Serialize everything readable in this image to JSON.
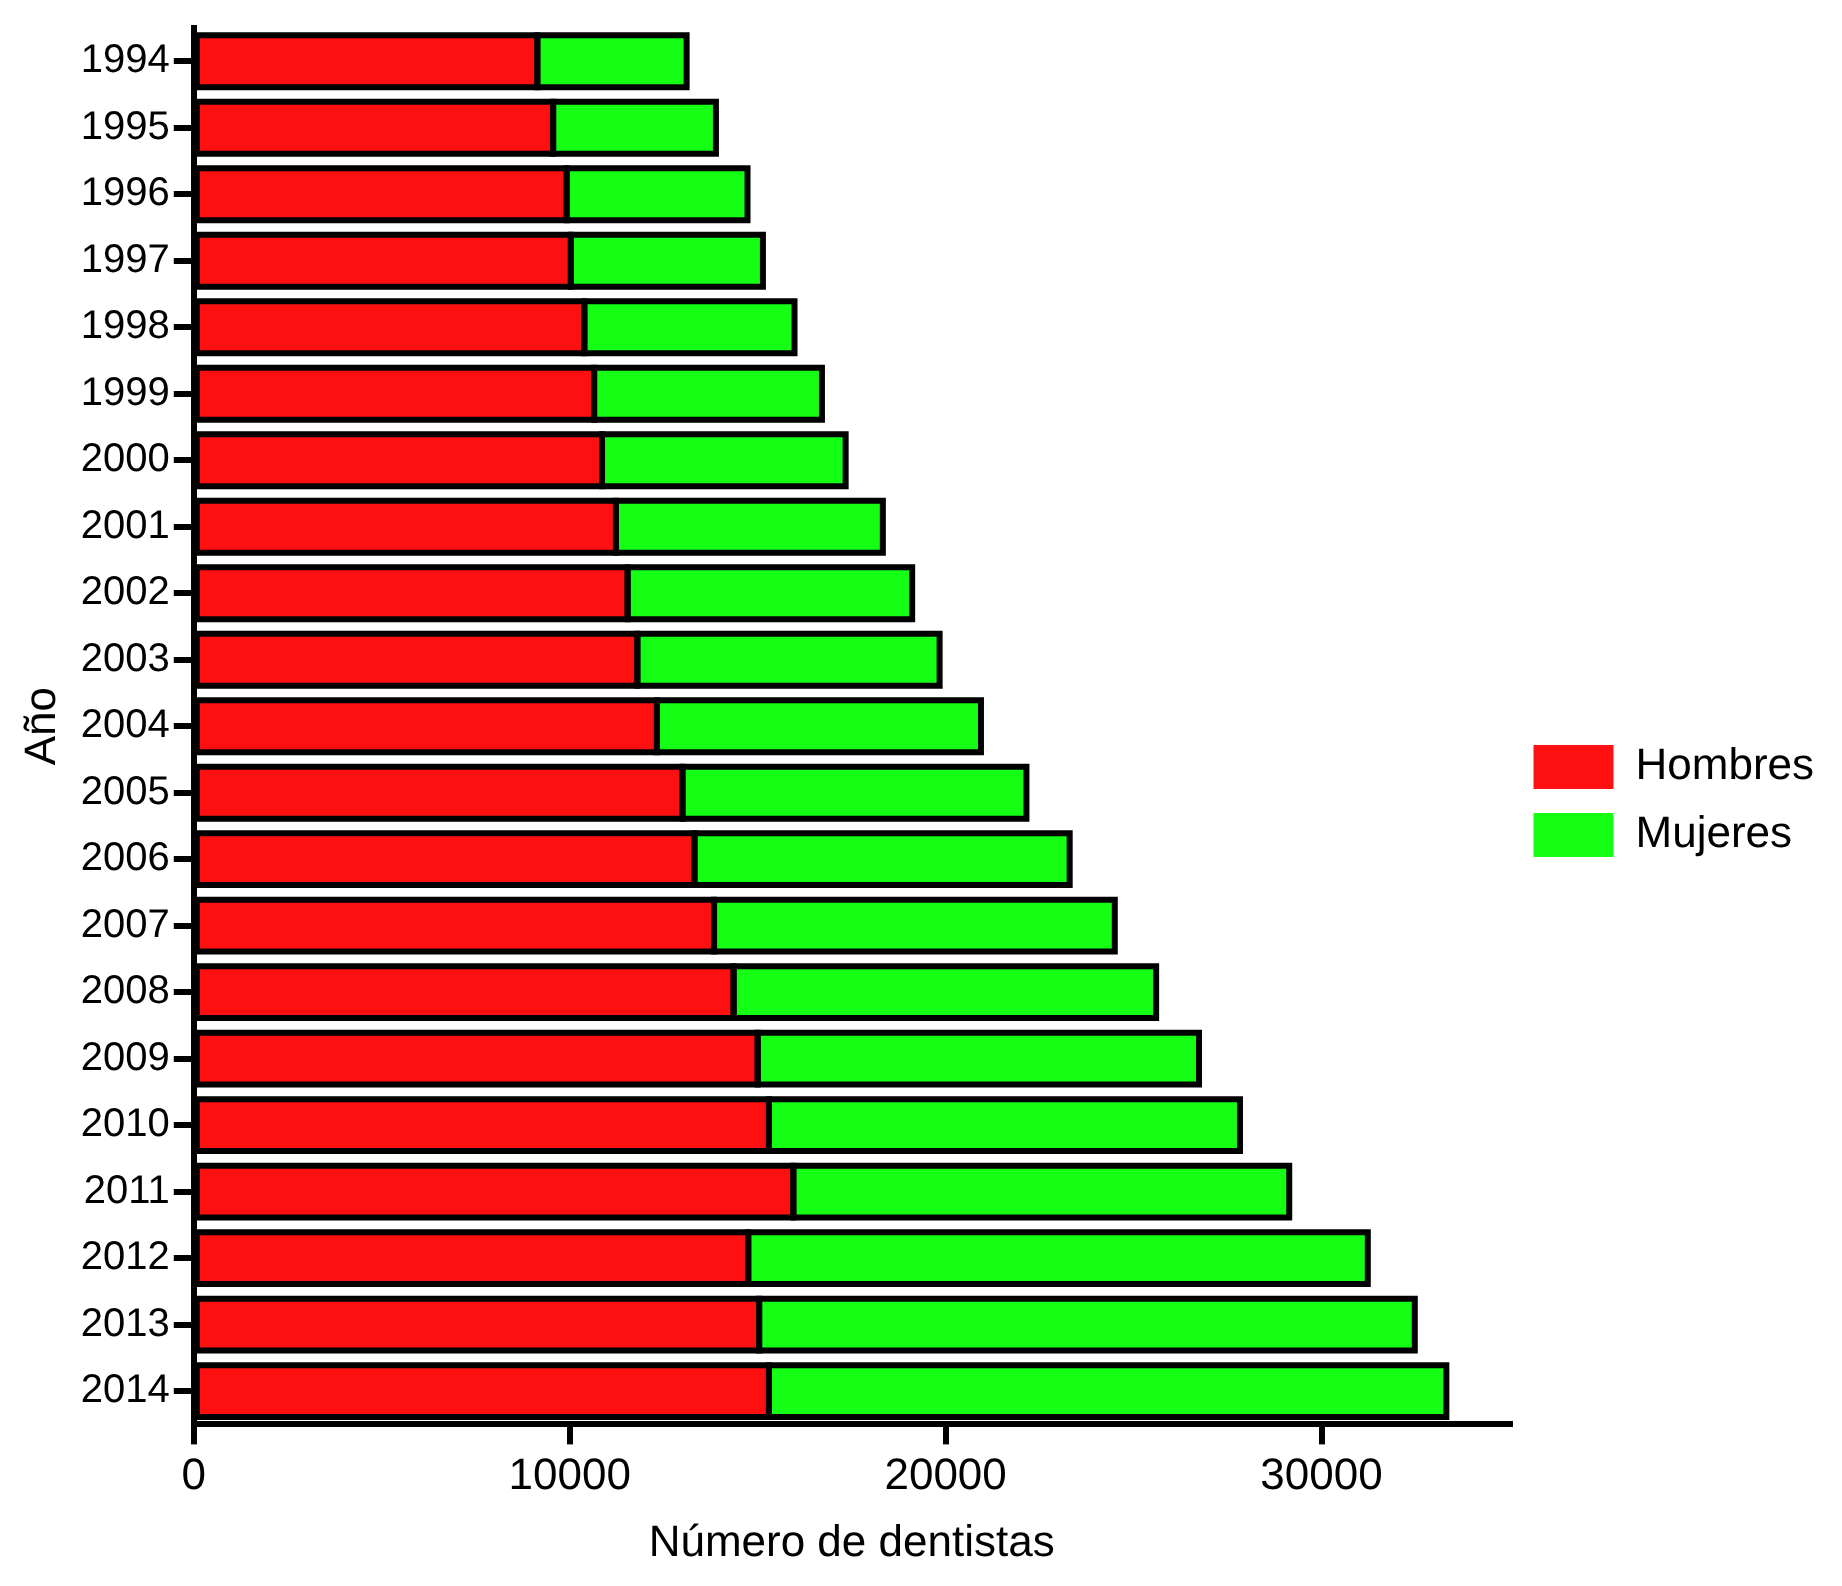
{
  "chart_data": {
    "type": "bar",
    "orientation": "horizontal",
    "stacked": true,
    "xlabel": "Número de dentistas",
    "ylabel": "Año",
    "categories": [
      "1994",
      "1995",
      "1996",
      "1997",
      "1998",
      "1999",
      "2000",
      "2001",
      "2002",
      "2003",
      "2004",
      "2005",
      "2006",
      "2007",
      "2008",
      "2009",
      "2010",
      "2011",
      "2012",
      "2013",
      "2014"
    ],
    "series": [
      {
        "name": "Hombres",
        "color": "#ff1010",
        "values": [
          9140,
          9560,
          9920,
          10030,
          10390,
          10650,
          10860,
          11230,
          11540,
          11800,
          12320,
          13000,
          13320,
          13840,
          14360,
          15000,
          15300,
          15950,
          14750,
          15040,
          15300
        ]
      },
      {
        "name": "Mujeres",
        "color": "#14ff14",
        "values": [
          3970,
          4330,
          4810,
          5110,
          5590,
          6060,
          6480,
          7100,
          7570,
          8040,
          8620,
          9150,
          9980,
          10660,
          11240,
          11740,
          12530,
          13190,
          16480,
          17440,
          18020
        ]
      }
    ],
    "xlim": [
      0,
      35000
    ],
    "xticks": [
      0,
      10000,
      20000,
      30000
    ],
    "grid": false,
    "legend": "right"
  }
}
